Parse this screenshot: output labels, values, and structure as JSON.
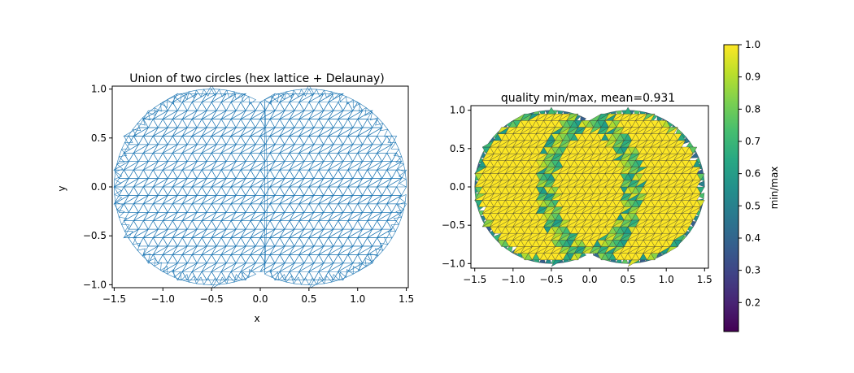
{
  "chart_data": [
    {
      "type": "mesh",
      "title": "Union of two circles (hex lattice + Delaunay)",
      "xlabel": "x",
      "ylabel": "y",
      "xlim": [
        -1.5,
        1.5
      ],
      "ylim": [
        -1.0,
        1.0
      ],
      "xticks": [
        -1.5,
        -1.0,
        -0.5,
        0.0,
        0.5,
        1.0,
        1.5
      ],
      "yticks": [
        -1.0,
        -0.5,
        0.0,
        0.5,
        1.0
      ],
      "circles": [
        {
          "cx": -0.5,
          "cy": 0,
          "r": 1
        },
        {
          "cx": 0.5,
          "cy": 0,
          "r": 1
        }
      ],
      "mesh_color": "#1f77b4"
    },
    {
      "type": "heatmap",
      "title": "quality min/max, mean=0.931",
      "mean_quality": 0.931,
      "xlim": [
        -1.5,
        1.5
      ],
      "ylim": [
        -1.0,
        1.0
      ],
      "xticks": [
        -1.5,
        -1.0,
        -0.5,
        0.0,
        0.5,
        1.0,
        1.5
      ],
      "yticks": [
        -1.0,
        -0.5,
        0.0,
        0.5,
        1.0
      ],
      "colorbar": {
        "label": "min/max",
        "range": [
          0.11,
          1.0
        ],
        "ticks": [
          0.2,
          0.3,
          0.4,
          0.5,
          0.6,
          0.7,
          0.8,
          0.9,
          1.0
        ],
        "colormap": "viridis"
      }
    }
  ]
}
